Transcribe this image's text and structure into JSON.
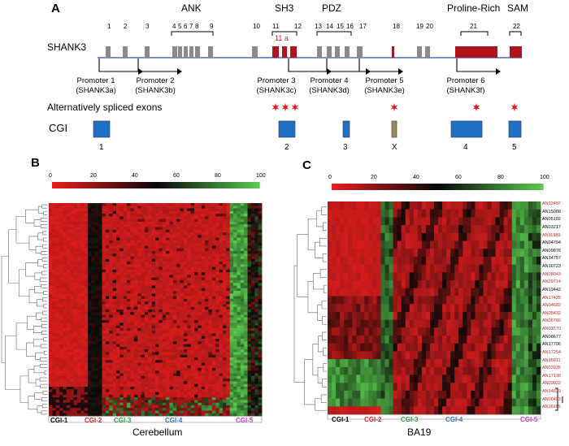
{
  "panel_a": {
    "letter": "A",
    "domains": [
      "ANK",
      "SH3",
      "PDZ",
      "Proline-Rich",
      "SAM"
    ],
    "gene": "SHANK3",
    "exon_numbers": [
      "1",
      "2",
      "3",
      "4",
      "5",
      "6",
      "7",
      "8",
      "9",
      "10",
      "11",
      "12",
      "13",
      "14",
      "15",
      "16",
      "17",
      "18",
      "19",
      "20",
      "21",
      "22"
    ],
    "exon_11a": "11 a",
    "promoters": [
      {
        "name": "Promoter 1",
        "isoform": "(SHANK3a)"
      },
      {
        "name": "Promoter 2",
        "isoform": "(SHANK3b)"
      },
      {
        "name": "Promoter 3",
        "isoform": "(SHANK3c)"
      },
      {
        "name": "Promoter 4",
        "isoform": "(SHANK3d)"
      },
      {
        "name": "Promoter 5",
        "isoform": "(SHANK3e)"
      },
      {
        "name": "Promoter 6",
        "isoform": "(SHANK3f)"
      }
    ],
    "alt_spliced_label": "Alternatively spliced exons",
    "cgi_label": "CGI",
    "cgi_names": [
      "1",
      "2",
      "3",
      "X",
      "4",
      "5"
    ],
    "colors": {
      "exon_gray": "#8a8a8a",
      "exon_red": "#b0141c",
      "cgi_blue": "#1f6fc4",
      "cgi_x": "#9a8c5a",
      "star_red": "#e02020",
      "line_blue": "#2a4fa0"
    }
  },
  "panel_b": {
    "letter": "B",
    "scale_ticks": [
      "0",
      "20",
      "40",
      "60",
      "80",
      "100"
    ],
    "groups": [
      "CGI-1",
      "CGI-2",
      "CGI-3",
      "CGI-4",
      "CGI-5"
    ],
    "title": "Cerebellum"
  },
  "panel_c": {
    "letter": "C",
    "scale_ticks": [
      "0",
      "20",
      "40",
      "60",
      "80",
      "100"
    ],
    "groups": [
      "CGI-1",
      "CGI-2",
      "CGI-3",
      "CGI-4",
      "CGI-5"
    ],
    "title": "BA19",
    "samples": [
      {
        "id": "AN12457",
        "red": true
      },
      {
        "id": "AN15088",
        "red": false
      },
      {
        "id": "AN05102",
        "red": false
      },
      {
        "id": "AN03217",
        "red": false
      },
      {
        "id": "AN11989",
        "red": true
      },
      {
        "id": "AN04794",
        "red": false
      },
      {
        "id": "AN09876",
        "red": false
      },
      {
        "id": "AN14757",
        "red": false
      },
      {
        "id": "AN10723",
        "red": false
      },
      {
        "id": "AN08043",
        "red": true
      },
      {
        "id": "AN09714",
        "red": true
      },
      {
        "id": "AN19442",
        "red": false
      },
      {
        "id": "AN17425",
        "red": true
      },
      {
        "id": "AN04682",
        "red": true
      },
      {
        "id": "AN05432",
        "red": true
      },
      {
        "id": "AN06792",
        "red": true
      },
      {
        "id": "AN01570",
        "red": true
      },
      {
        "id": "AN08677",
        "red": false
      },
      {
        "id": "AN17706",
        "red": false
      },
      {
        "id": "AN17254",
        "red": true
      },
      {
        "id": "AN15811",
        "red": true
      },
      {
        "id": "AN03935",
        "red": true
      },
      {
        "id": "AN17138",
        "red": true
      },
      {
        "id": "AN09032",
        "red": true
      },
      {
        "id": "AN14829",
        "red": true
      },
      {
        "id": "AN00493",
        "red": true
      },
      {
        "id": "AN16115",
        "red": true
      }
    ]
  }
}
